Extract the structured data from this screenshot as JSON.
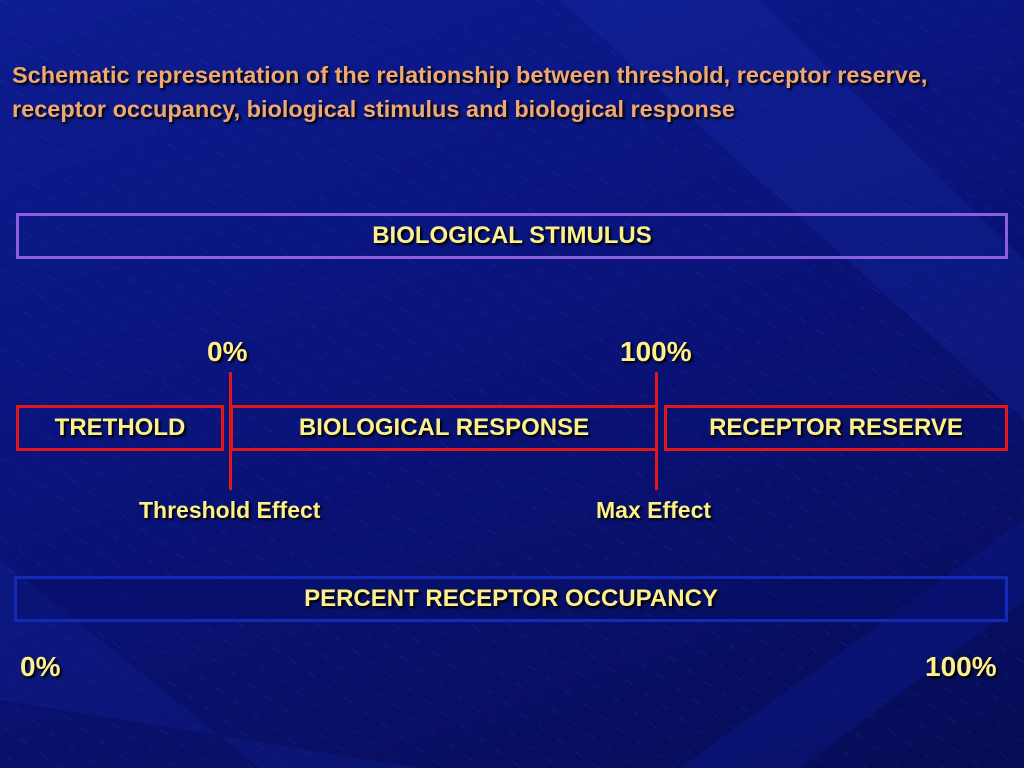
{
  "slide": {
    "title": "Schematic representation of the relationship between threshold, receptor reserve, receptor occupancy, biological stimulus and biological response"
  },
  "diagram": {
    "stimulus_label": "BIOLOGICAL STIMULUS",
    "response_scale": {
      "start_label": "0%",
      "end_label": "100%"
    },
    "segments": {
      "threshold": "TRETHOLD",
      "response": "BIOLOGICAL RESPONSE",
      "reserve": "RECEPTOR RESERVE"
    },
    "effects": {
      "threshold": "Threshold Effect",
      "max": "Max Effect"
    },
    "occupancy_label": "PERCENT RECEPTOR OCCUPANCY",
    "occupancy_scale": {
      "start_label": "0%",
      "end_label": "100%"
    }
  },
  "colors": {
    "title": "#f0a873",
    "label": "#fdf08a",
    "stimulus_border": "#8a5fe0",
    "segment_border": "#e01818",
    "occupancy_border": "#1628b8",
    "background": "#0a1580"
  }
}
